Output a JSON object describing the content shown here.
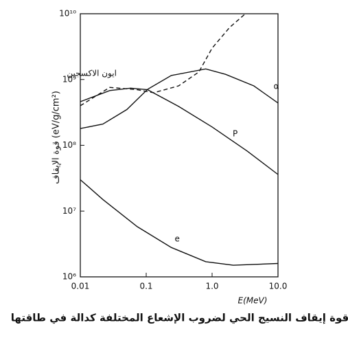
{
  "chart_data": {
    "type": "line",
    "caption": "قوة إيقاف النسيج الحي لضروب الإشعاع المختلفة كدالة في طاقتها",
    "x_label": "E(MeV)",
    "y_label": "قوة الإيقاف (eV/g/cm²)",
    "xscale": "log",
    "yscale": "log",
    "xlim": [
      0.01,
      10
    ],
    "ylim": [
      1000000,
      10000000000
    ],
    "xticks": [
      0.01,
      0.1,
      {
        "value": 1,
        "label": "1.0"
      },
      {
        "value": 10,
        "label": "10.0"
      }
    ],
    "yticks": [
      {
        "value": 1000000,
        "label": "10⁶"
      },
      {
        "value": 10000000,
        "label": "10⁷"
      },
      {
        "value": 100000000,
        "label": "10⁸"
      },
      {
        "value": 1000000000,
        "label": "10⁹"
      },
      {
        "value": 10000000000,
        "label": "10¹⁰"
      }
    ],
    "series": [
      {
        "name": "ايون الاكسجين",
        "color": "#111111",
        "dashed": true,
        "x": [
          0.01,
          0.028,
          0.073,
          0.13,
          0.31,
          0.63,
          1.0,
          1.85,
          3.2
        ],
        "values": [
          400000000,
          760000000,
          700000000,
          630000000,
          800000000,
          1300000000,
          3000000000,
          6200000000,
          10000000000
        ]
      },
      {
        "name": "α",
        "color": "#111111",
        "dashed": false,
        "x": [
          0.01,
          0.022,
          0.051,
          0.105,
          0.24,
          0.8,
          1.6,
          4.3,
          10
        ],
        "values": [
          180000000,
          210000000,
          350000000,
          710000000,
          1150000000,
          1450000000,
          1200000000,
          800000000,
          440000000
        ]
      },
      {
        "name": "P",
        "color": "#111111",
        "dashed": false,
        "x": [
          0.01,
          0.028,
          0.058,
          0.105,
          0.31,
          1.0,
          3.4,
          10
        ],
        "values": [
          460000000,
          680000000,
          740000000,
          700000000,
          390000000,
          190000000,
          82000000,
          36000000
        ]
      },
      {
        "name": "e",
        "color": "#111111",
        "dashed": false,
        "x": [
          0.01,
          0.022,
          0.073,
          0.24,
          0.8,
          2.1,
          10
        ],
        "values": [
          30000000,
          15000000,
          5800000,
          2800000,
          1700000,
          1500000,
          1600000
        ]
      }
    ]
  }
}
